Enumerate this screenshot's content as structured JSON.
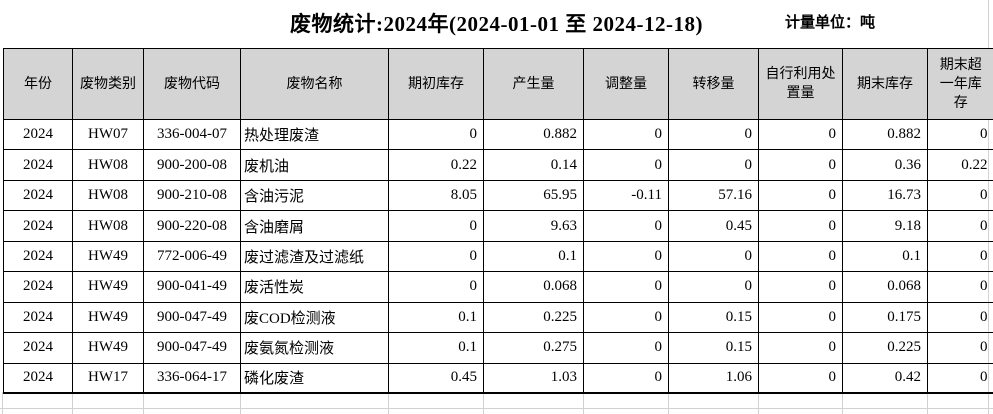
{
  "title": "废物统计:2024年(2024-01-01 至 2024-12-18)",
  "unit_label": "计量单位：吨",
  "table": {
    "columns": [
      "年份",
      "废物类别",
      "废物代码",
      "废物名称",
      "期初库存",
      "产生量",
      "调整量",
      "转移量",
      "自行利用处置量",
      "期末库存",
      "期末超一年库存"
    ],
    "rows": [
      [
        "2024",
        "HW07",
        "336-004-07",
        "热处理废渣",
        "0",
        "0.882",
        "0",
        "0",
        "0",
        "0.882",
        "0"
      ],
      [
        "2024",
        "HW08",
        "900-200-08",
        "废机油",
        "0.22",
        "0.14",
        "0",
        "0",
        "0",
        "0.36",
        "0.22"
      ],
      [
        "2024",
        "HW08",
        "900-210-08",
        "含油污泥",
        "8.05",
        "65.95",
        "-0.11",
        "57.16",
        "0",
        "16.73",
        "0"
      ],
      [
        "2024",
        "HW08",
        "900-220-08",
        "含油磨屑",
        "0",
        "9.63",
        "0",
        "0.45",
        "0",
        "9.18",
        "0"
      ],
      [
        "2024",
        "HW49",
        "772-006-49",
        "废过滤渣及过滤纸",
        "0",
        "0.1",
        "0",
        "0",
        "0",
        "0.1",
        "0"
      ],
      [
        "2024",
        "HW49",
        "900-041-49",
        "废活性炭",
        "0",
        "0.068",
        "0",
        "0",
        "0",
        "0.068",
        "0"
      ],
      [
        "2024",
        "HW49",
        "900-047-49",
        "废COD检测液",
        "0.1",
        "0.225",
        "0",
        "0.15",
        "0",
        "0.175",
        "0"
      ],
      [
        "2024",
        "HW49",
        "900-047-49",
        "废氨氮检测液",
        "0.1",
        "0.275",
        "0",
        "0.15",
        "0",
        "0.225",
        "0"
      ],
      [
        "2024",
        "HW17",
        "336-064-17",
        "磷化废渣",
        "0.45",
        "1.03",
        "0",
        "1.06",
        "0",
        "0.42",
        "0"
      ]
    ]
  },
  "colors": {
    "header_bg": "#d4d4d4",
    "table_border": "#000000",
    "faint_grid": "#d2d2d2"
  }
}
